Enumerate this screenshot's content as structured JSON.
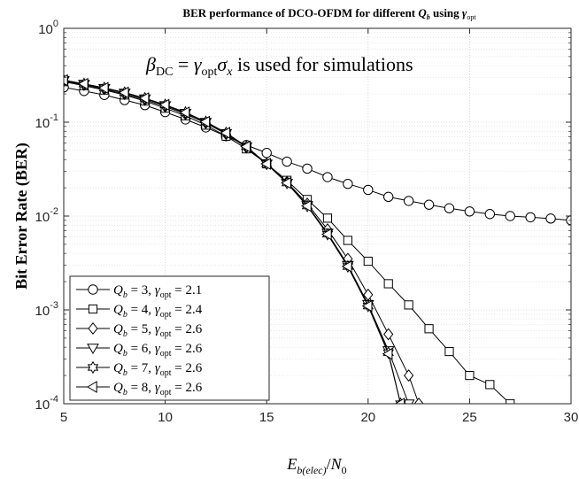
{
  "chart_data": {
    "type": "line",
    "title": "BER performance of DCO-OFDM for different Q_b using γ_opt",
    "title_parts": {
      "prefix": "BER performance of DCO-OFDM for different ",
      "q": "Q",
      "q_sub": "b",
      "mid": " using ",
      "gamma": "γ",
      "gamma_sub": "opt"
    },
    "xlabel": "E_b(elec)/N_0",
    "xlabel_parts": {
      "e": "E",
      "e_sub": "b(elec)",
      "slash": "/",
      "n": "N",
      "n_sub": "0"
    },
    "ylabel": "Bit Error Rate (BER)",
    "annotation": {
      "text": "β_DC = γ_opt σ_x is used for simulations",
      "beta": "β",
      "beta_sub": "DC",
      "eq": " = ",
      "gamma": "γ",
      "gamma_sub": "opt",
      "sigma": "σ",
      "sigma_sub": "x",
      "rest": " is used for simulations"
    },
    "xlim": [
      5,
      30
    ],
    "ylim": [
      0.0001,
      1
    ],
    "yscale": "log",
    "grid": true,
    "xticks": [
      "5",
      "10",
      "15",
      "20",
      "25",
      "30"
    ],
    "yticks": [
      {
        "base": "10",
        "exp": "-4"
      },
      {
        "base": "10",
        "exp": "-3"
      },
      {
        "base": "10",
        "exp": "-2"
      },
      {
        "base": "10",
        "exp": "-1"
      },
      {
        "base": "10",
        "exp": "0"
      }
    ],
    "legend_position": "lower-left",
    "series": [
      {
        "name": "Q_b = 3, γ_opt = 2.1",
        "q": "3",
        "g": "2.1",
        "marker": "circle",
        "x": [
          5,
          6,
          7,
          8,
          9,
          10,
          11,
          12,
          13,
          14,
          15,
          16,
          17,
          18,
          19,
          20,
          21,
          22,
          23,
          24,
          25,
          26,
          27,
          28,
          29,
          30
        ],
        "y": [
          0.235,
          0.215,
          0.195,
          0.172,
          0.152,
          0.128,
          0.107,
          0.088,
          0.071,
          0.057,
          0.047,
          0.038,
          0.032,
          0.026,
          0.022,
          0.019,
          0.016,
          0.0145,
          0.0132,
          0.0121,
          0.0112,
          0.0105,
          0.01,
          0.0097,
          0.0094,
          0.009
        ]
      },
      {
        "name": "Q_b = 4, γ_opt = 2.4",
        "q": "4",
        "g": "2.4",
        "marker": "square",
        "x": [
          5,
          6,
          7,
          8,
          9,
          10,
          11,
          12,
          13,
          14,
          15,
          16,
          17,
          18,
          19,
          20,
          21,
          22,
          23,
          24,
          25,
          26,
          27
        ],
        "y": [
          0.27,
          0.245,
          0.22,
          0.195,
          0.168,
          0.141,
          0.117,
          0.093,
          0.071,
          0.052,
          0.036,
          0.024,
          0.015,
          0.0095,
          0.0055,
          0.0033,
          0.0019,
          0.00113,
          0.00063,
          0.00036,
          0.0002,
          0.00016,
          0.0001
        ]
      },
      {
        "name": "Q_b = 5, γ_opt = 2.6",
        "q": "5",
        "g": "2.6",
        "marker": "diamond",
        "x": [
          5,
          6,
          7,
          8,
          9,
          10,
          11,
          12,
          13,
          14,
          15,
          16,
          17,
          18,
          19,
          20,
          21,
          22,
          22.5
        ],
        "y": [
          0.275,
          0.25,
          0.225,
          0.2,
          0.173,
          0.147,
          0.122,
          0.098,
          0.075,
          0.054,
          0.036,
          0.023,
          0.0135,
          0.0072,
          0.0035,
          0.00145,
          0.00055,
          0.0002,
          0.0001
        ]
      },
      {
        "name": "Q_b = 6, γ_opt = 2.6",
        "q": "6",
        "g": "2.6",
        "marker": "triangle-down",
        "x": [
          5,
          6,
          7,
          8,
          9,
          10,
          11,
          12,
          13,
          14,
          15,
          16,
          17,
          18,
          19,
          20,
          21,
          22
        ],
        "y": [
          0.28,
          0.255,
          0.23,
          0.205,
          0.178,
          0.151,
          0.125,
          0.1,
          0.076,
          0.055,
          0.036,
          0.0225,
          0.013,
          0.0066,
          0.003,
          0.00115,
          0.00037,
          0.0001
        ]
      },
      {
        "name": "Q_b = 7, γ_opt = 2.6",
        "q": "7",
        "g": "2.6",
        "marker": "hexagram",
        "x": [
          5,
          6,
          7,
          8,
          9,
          10,
          11,
          12,
          13,
          14,
          15,
          16,
          17,
          18,
          19,
          20,
          21,
          21.6
        ],
        "y": [
          0.28,
          0.256,
          0.232,
          0.207,
          0.18,
          0.153,
          0.127,
          0.101,
          0.077,
          0.055,
          0.036,
          0.0225,
          0.0128,
          0.0064,
          0.0029,
          0.0011,
          0.00035,
          0.0001
        ]
      },
      {
        "name": "Q_b = 8, γ_opt = 2.6",
        "q": "8",
        "g": "2.6",
        "marker": "triangle-left",
        "x": [
          5,
          6,
          7,
          8,
          9,
          10,
          11,
          12,
          13,
          14,
          15,
          16,
          17,
          18,
          19,
          20,
          21,
          21.6
        ],
        "y": [
          0.28,
          0.256,
          0.232,
          0.207,
          0.18,
          0.153,
          0.127,
          0.101,
          0.077,
          0.055,
          0.036,
          0.0225,
          0.0128,
          0.0064,
          0.0029,
          0.0011,
          0.00034,
          0.0001
        ]
      }
    ]
  }
}
